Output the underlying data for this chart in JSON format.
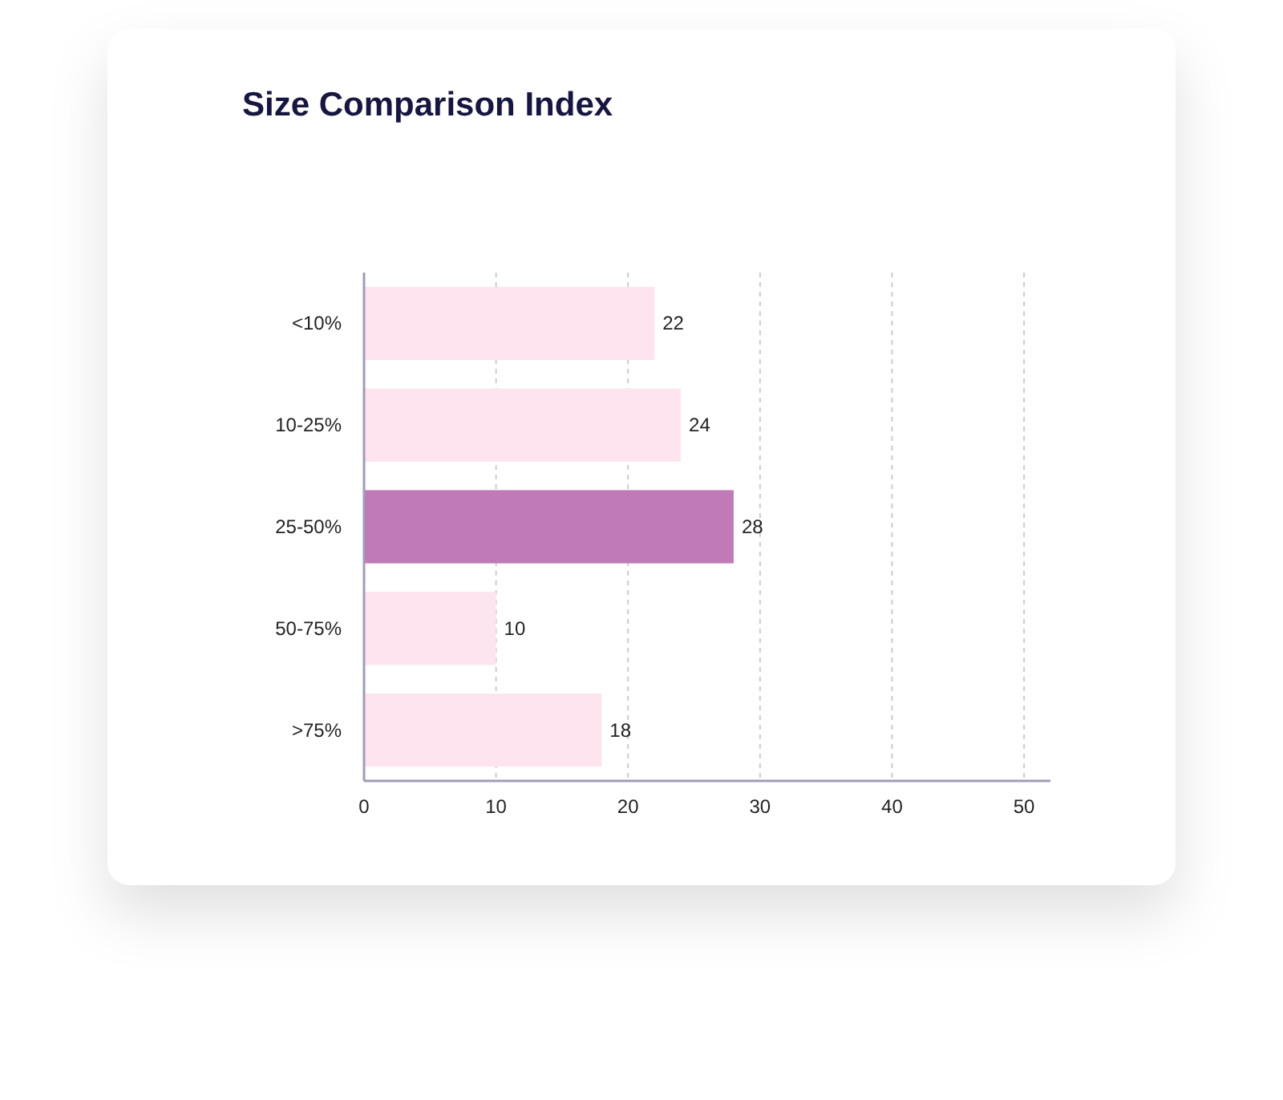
{
  "chart_data": {
    "type": "bar",
    "orientation": "horizontal",
    "title": "Size Comparison Index",
    "categories": [
      "<10%",
      "10-25%",
      "25-50%",
      "50-75%",
      ">75%"
    ],
    "values": [
      22,
      24,
      28,
      10,
      18
    ],
    "colors": [
      "#fde4ef",
      "#fde4ef",
      "#c17ab8",
      "#fde4ef",
      "#fde4ef"
    ],
    "xlim": [
      0,
      52
    ],
    "xticks": [
      0,
      10,
      20,
      30,
      40,
      50
    ],
    "grid": "x",
    "data_labels": true
  }
}
